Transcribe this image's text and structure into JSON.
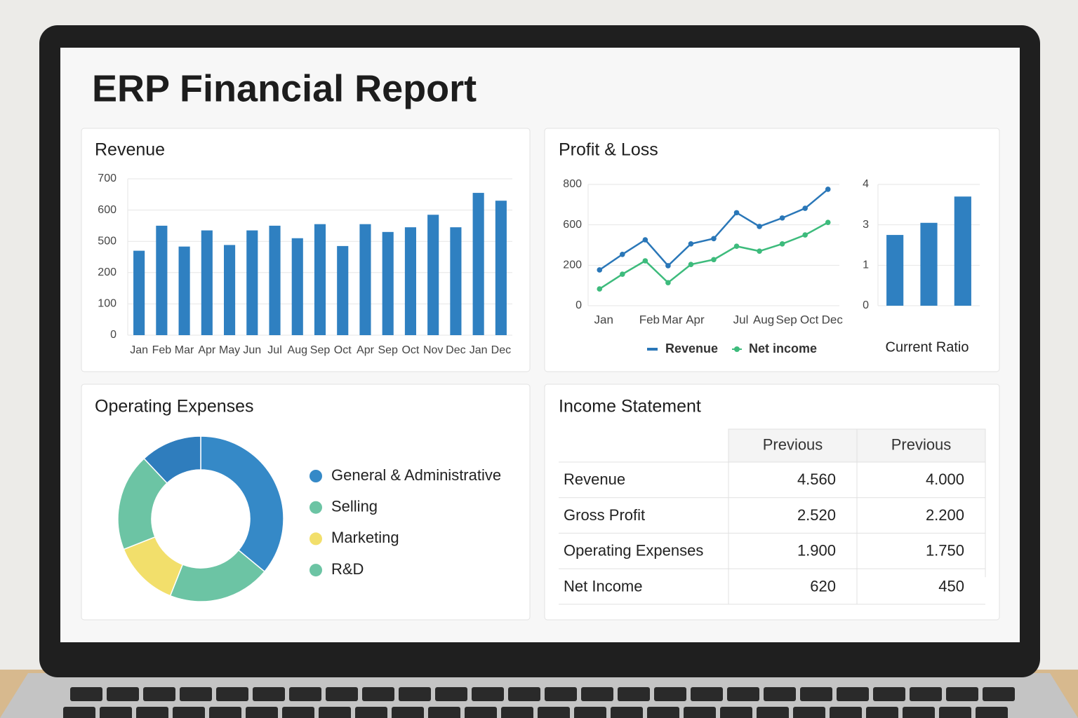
{
  "title": "ERP Financial Report",
  "chart_data": [
    {
      "type": "bar",
      "title": "Revenue",
      "categories": [
        "Jan",
        "Feb",
        "Mar",
        "Apr",
        "May",
        "Jun",
        "Jul",
        "Aug",
        "Sep",
        "Oct",
        "Apr",
        "Sep",
        "Oct",
        "Nov",
        "Dec",
        "Jan",
        "Dec"
      ],
      "values": [
        410,
        550,
        450,
        535,
        465,
        535,
        550,
        510,
        555,
        455,
        555,
        530,
        545,
        585,
        545,
        655,
        630
      ],
      "color": "#2f80c1",
      "ylim": [
        0,
        700
      ],
      "yticks": [
        0,
        100,
        200,
        500,
        600,
        700
      ],
      "grid": true
    },
    {
      "type": "line",
      "title": "Profit & Loss",
      "categories": [
        "Jan",
        null,
        "Feb",
        "Mar",
        "Apr",
        null,
        "Jul",
        "Aug",
        "Sep",
        "Oct",
        "Dec"
      ],
      "series": [
        {
          "name": "Revenue",
          "color": "#2a77b8",
          "values": [
            177,
            308,
            452,
            198,
            412,
            464,
            660,
            584,
            634,
            682,
            776
          ]
        },
        {
          "name": "Net income",
          "color": "#3dbb7c",
          "values": [
            83,
            156,
            244,
            114,
            208,
            256,
            388,
            340,
            412,
            500,
            612
          ]
        }
      ],
      "ylim": [
        0,
        800
      ],
      "yticks": [
        0,
        200,
        600,
        800
      ],
      "grid": true,
      "legend": "bottom"
    },
    {
      "type": "bar",
      "x_label": "Current Ratio",
      "values": [
        2.5,
        3.05,
        3.7
      ],
      "color": "#2f80c1",
      "ylim": [
        0,
        4
      ],
      "yticks": [
        0,
        1,
        3,
        4
      ],
      "grid": true
    },
    {
      "type": "donut",
      "title": "Operating Expenses",
      "categories": [
        "General & Administrative",
        "Selling",
        "Marketing",
        "R&D",
        null
      ],
      "values": [
        36,
        20,
        13,
        19,
        12
      ],
      "colors": [
        "#3589c7",
        "#6cc4a4",
        "#f2df6b",
        "#6cc4a4",
        "#2f7dbd"
      ],
      "legend": "right"
    }
  ],
  "table": {
    "title": "Income Statement",
    "columns": [
      "Previous",
      "Previous"
    ],
    "rows": [
      [
        "Revenue",
        "4.560",
        "4.000"
      ],
      [
        "Gross Profit",
        "2.520",
        "2.200"
      ],
      [
        "Operating Expenses",
        "1.900",
        "1.750"
      ],
      [
        "Net Income",
        "620",
        "450"
      ]
    ]
  }
}
